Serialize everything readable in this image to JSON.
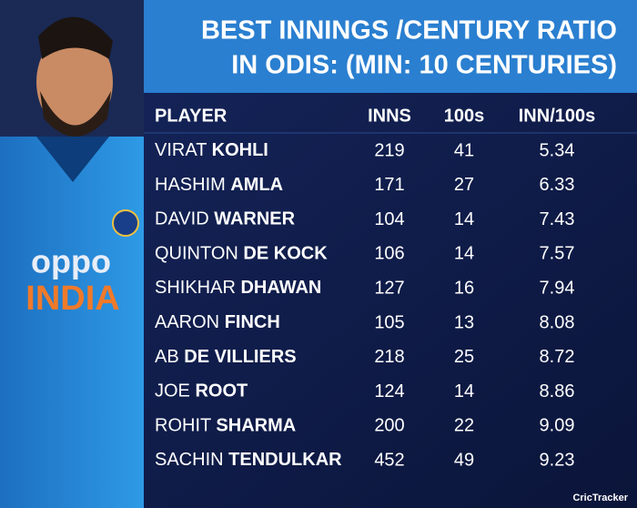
{
  "header": {
    "title_lines": [
      "BEST INNINGS /CENTURY RATIO",
      "IN ODIS: (MIN: 10 CENTURIES)"
    ]
  },
  "image": {
    "jersey_brand": "oppo",
    "jersey_team": "INDIA"
  },
  "table": {
    "columns": [
      "PLAYER",
      "INNS",
      "100s",
      "INN/100s"
    ],
    "rows": [
      {
        "first": "VIRAT",
        "last": "KOHLI",
        "inns": 219,
        "centuries": 41,
        "ratio": 5.34
      },
      {
        "first": "HASHIM",
        "last": "AMLA",
        "inns": 171,
        "centuries": 27,
        "ratio": 6.33
      },
      {
        "first": "DAVID",
        "last": "WARNER",
        "inns": 104,
        "centuries": 14,
        "ratio": 7.43
      },
      {
        "first": "QUINTON",
        "last": "DE KOCK",
        "inns": 106,
        "centuries": 14,
        "ratio": 7.57
      },
      {
        "first": "SHIKHAR",
        "last": "DHAWAN",
        "inns": 127,
        "centuries": 16,
        "ratio": 7.94
      },
      {
        "first": "AARON",
        "last": "FINCH",
        "inns": 105,
        "centuries": 13,
        "ratio": 8.08
      },
      {
        "first": "AB",
        "last": "DE VILLIERS",
        "inns": 218,
        "centuries": 25,
        "ratio": 8.72
      },
      {
        "first": "JOE",
        "last": "ROOT",
        "inns": 124,
        "centuries": 14,
        "ratio": 8.86
      },
      {
        "first": "ROHIT",
        "last": "SHARMA",
        "inns": 200,
        "centuries": 22,
        "ratio": 9.09
      },
      {
        "first": "SACHIN",
        "last": "TENDULKAR",
        "inns": 452,
        "centuries": 49,
        "ratio": 9.23
      }
    ]
  },
  "footer": {
    "brand": "CricTracker"
  }
}
